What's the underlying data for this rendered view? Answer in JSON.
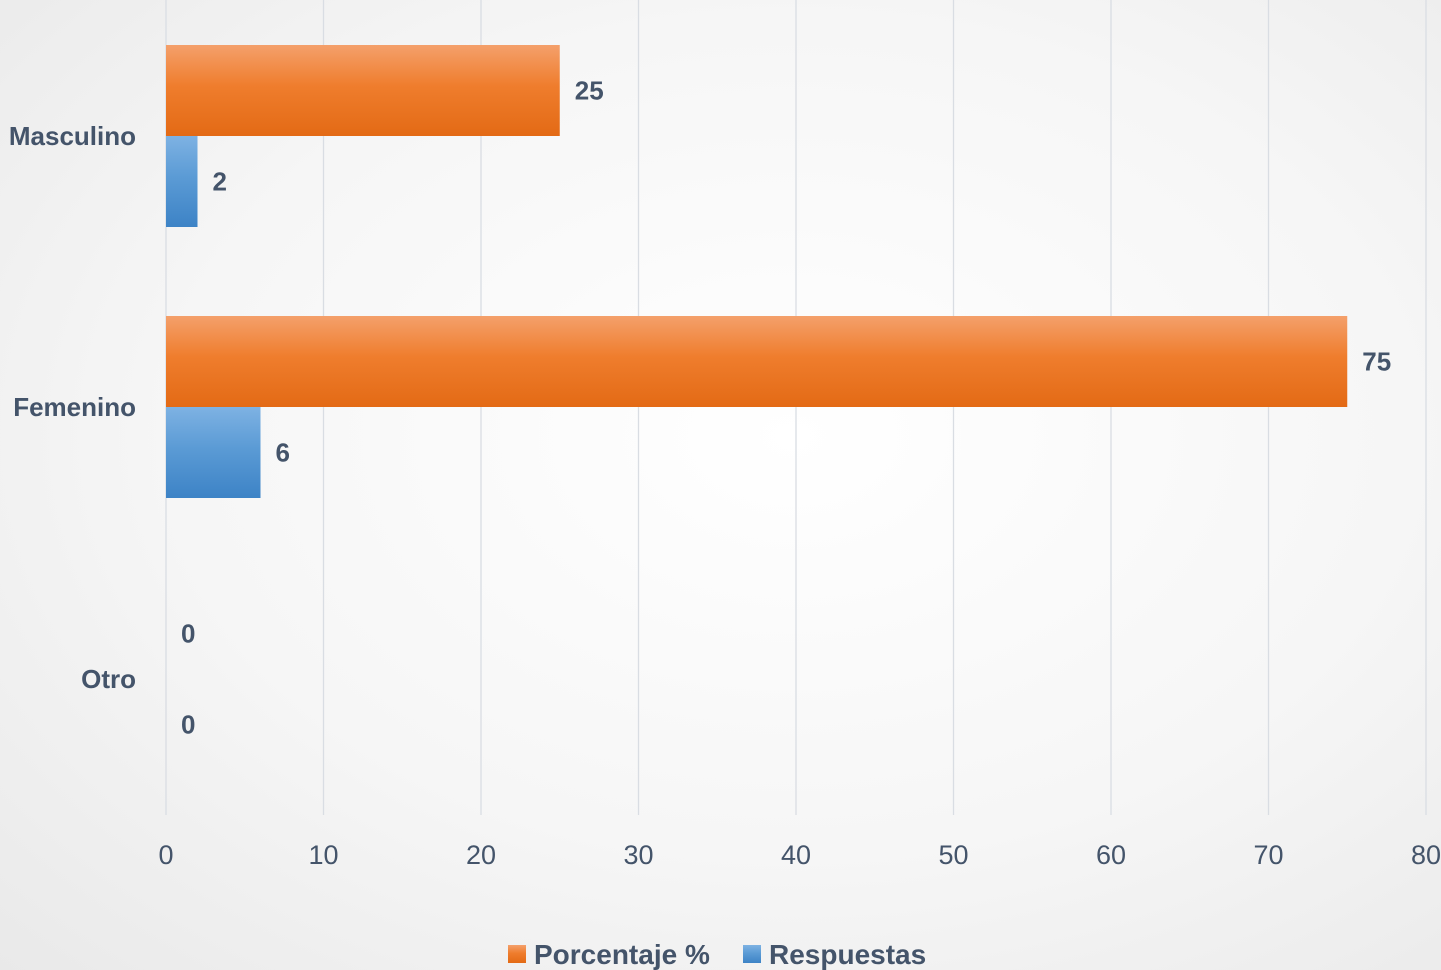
{
  "chart_data": {
    "type": "bar",
    "orientation": "horizontal",
    "categories": [
      "Masculino",
      "Femenino",
      "Otro"
    ],
    "series": [
      {
        "name": "Porcentaje %",
        "values": [
          25,
          75,
          0
        ],
        "color": "#ed7d31"
      },
      {
        "name": "Respuestas",
        "values": [
          2,
          6,
          0
        ],
        "color": "#5b9bd5"
      }
    ],
    "xlim": [
      0,
      80
    ],
    "xticks": [
      "0",
      "10",
      "20",
      "30",
      "40",
      "50",
      "60",
      "70",
      "80"
    ],
    "grid": true,
    "legend_position": "bottom",
    "data_labels": true
  }
}
